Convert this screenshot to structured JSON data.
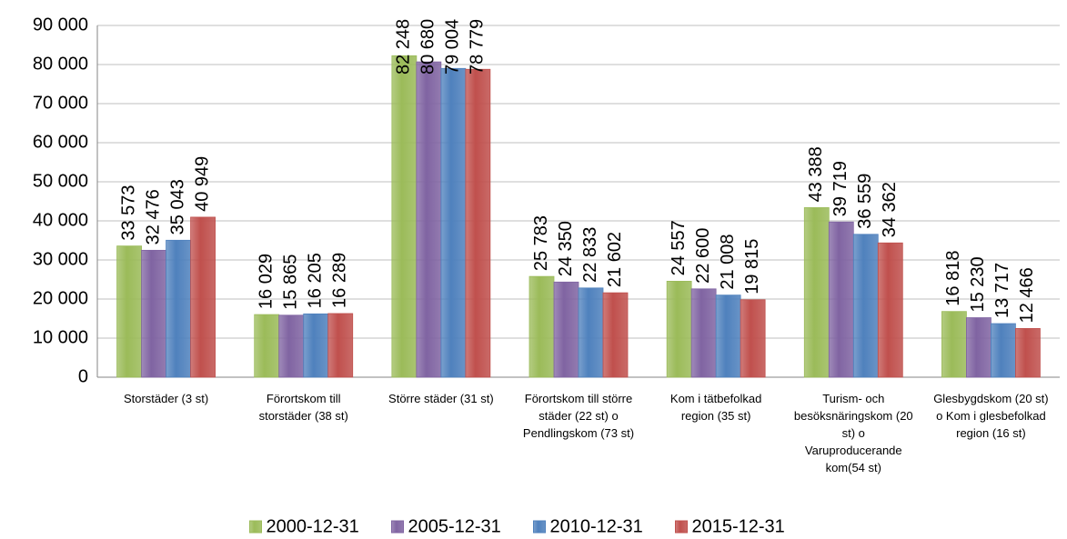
{
  "chart_data": {
    "type": "bar",
    "categories": [
      "Storstäder (3 st)",
      "Förortskom till storstäder (38 st)",
      "Större städer (31 st)",
      "Förortskom till större städer (22 st) o Pendlingskom (73 st)",
      "Kom i tätbefolkad region (35 st)",
      "Turism- och besöksnäringskom (20 st) o Varuproducerande kom(54 st)",
      "Glesbygdskom (20 st) o Kom i glesbefolkad region (16 st)"
    ],
    "series": [
      {
        "name": "2000-12-31",
        "color": "#9bbb59",
        "values": [
          33573,
          16029,
          82248,
          25783,
          24557,
          43388,
          16818
        ],
        "value_labels": [
          "33 573",
          "16 029",
          "82 248",
          "25 783",
          "24 557",
          "43 388",
          "16 818"
        ]
      },
      {
        "name": "2005-12-31",
        "color": "#8064a2",
        "values": [
          32476,
          15865,
          80680,
          24350,
          22600,
          39719,
          15230
        ],
        "value_labels": [
          "32 476",
          "15 865",
          "80 680",
          "24 350",
          "22 600",
          "39 719",
          "15 230"
        ]
      },
      {
        "name": "2010-12-31",
        "color": "#4f81bd",
        "values": [
          35043,
          16205,
          79004,
          22833,
          21008,
          36559,
          13717
        ],
        "value_labels": [
          "35 043",
          "16 205",
          "79 004",
          "22 833",
          "21 008",
          "36 559",
          "13 717"
        ]
      },
      {
        "name": "2015-12-31",
        "color": "#c0504d",
        "values": [
          40949,
          16289,
          78779,
          21602,
          19815,
          34362,
          12466
        ],
        "value_labels": [
          "40 949",
          "16 289",
          "78 779",
          "21 602",
          "19 815",
          "34 362",
          "12 466"
        ]
      }
    ],
    "ylim": [
      0,
      90000
    ],
    "yticks": [
      0,
      {
        "value": 10000,
        "label": "10 000"
      },
      {
        "value": 20000,
        "label": "20 000"
      },
      {
        "value": 30000,
        "label": "30 000"
      },
      {
        "value": 40000,
        "label": "40 000"
      },
      {
        "value": 50000,
        "label": "50 000"
      },
      {
        "value": 60000,
        "label": "60 000"
      },
      {
        "value": 70000,
        "label": "70 000"
      },
      {
        "value": 80000,
        "label": "80 000"
      },
      {
        "value": 90000,
        "label": "90 000"
      }
    ],
    "grid": true,
    "legend": "bottom"
  }
}
